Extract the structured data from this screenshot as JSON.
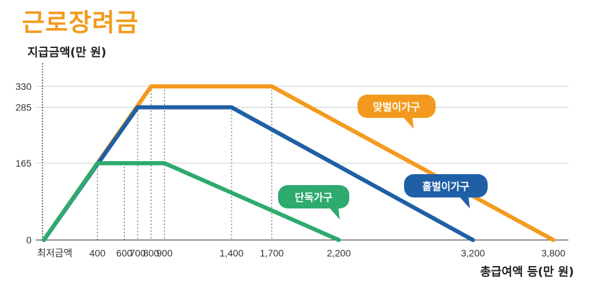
{
  "header": {
    "title": "근로장려금"
  },
  "chart_data": {
    "type": "line",
    "title": "근로장려금",
    "ylabel": "지급금액(만 원)",
    "xlabel": "총급여액 등(만 원)",
    "x_tick_labels": [
      "최저금액",
      "400",
      "600",
      "700",
      "800",
      "900",
      "1,400",
      "1,700",
      "2,200",
      "3,200",
      "3,800"
    ],
    "x_tick_values": [
      0,
      400,
      600,
      700,
      800,
      900,
      1400,
      1700,
      2200,
      3200,
      3800
    ],
    "y_tick_labels": [
      "0",
      "165",
      "285",
      "330"
    ],
    "y_tick_values": [
      0,
      165,
      285,
      330
    ],
    "xlim": [
      0,
      3800
    ],
    "ylim": [
      0,
      330
    ],
    "grid": "horizontal at y ticks, dotted vertical guides at breakpoints",
    "series": [
      {
        "name": "맞벌이가구",
        "color": "#f39a1e",
        "points": [
          [
            0,
            0
          ],
          [
            800,
            330
          ],
          [
            1700,
            330
          ],
          [
            3800,
            0
          ]
        ]
      },
      {
        "name": "홑벌이가구",
        "color": "#1f5fa6",
        "points": [
          [
            0,
            0
          ],
          [
            700,
            285
          ],
          [
            1400,
            285
          ],
          [
            3200,
            0
          ]
        ]
      },
      {
        "name": "단독가구",
        "color": "#2eaa6f",
        "points": [
          [
            0,
            0
          ],
          [
            400,
            165
          ],
          [
            900,
            165
          ],
          [
            2200,
            0
          ]
        ]
      }
    ]
  }
}
